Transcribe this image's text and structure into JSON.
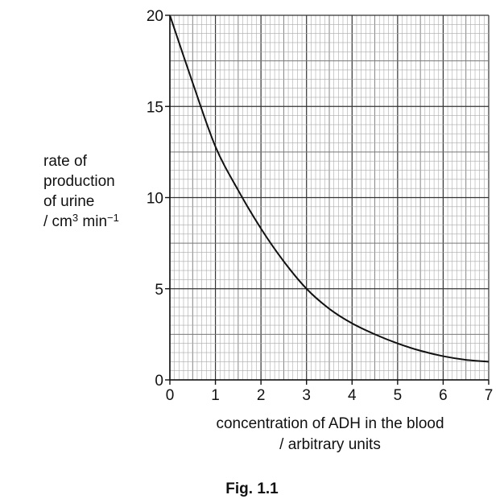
{
  "chart_data": {
    "type": "line",
    "title": "",
    "xlabel_lines": [
      "concentration of ADH in the blood",
      "/ arbitrary units"
    ],
    "ylabel": {
      "line1": "rate of",
      "line2": "production",
      "line3": "of urine",
      "unit_prefix": "/ cm",
      "unit_sup": "3",
      "unit_mid": " min",
      "unit_sup2": "−1"
    },
    "xlim": [
      0,
      7
    ],
    "ylim": [
      0,
      20
    ],
    "xticks": [
      "0",
      "1",
      "2",
      "3",
      "4",
      "5",
      "6",
      "7"
    ],
    "yticks": [
      "0",
      "5",
      "10",
      "15",
      "20"
    ],
    "grid": true,
    "series": [
      {
        "x": [
          0,
          0.5,
          1,
          1.5,
          2,
          2.5,
          3,
          3.5,
          4,
          4.5,
          5,
          5.5,
          6,
          6.5,
          7
        ],
        "y": [
          20,
          16.3,
          12.8,
          10.4,
          8.3,
          6.5,
          5.0,
          3.9,
          3.1,
          2.5,
          2.0,
          1.6,
          1.3,
          1.1,
          1.0
        ]
      }
    ]
  },
  "caption": "Fig. 1.1"
}
